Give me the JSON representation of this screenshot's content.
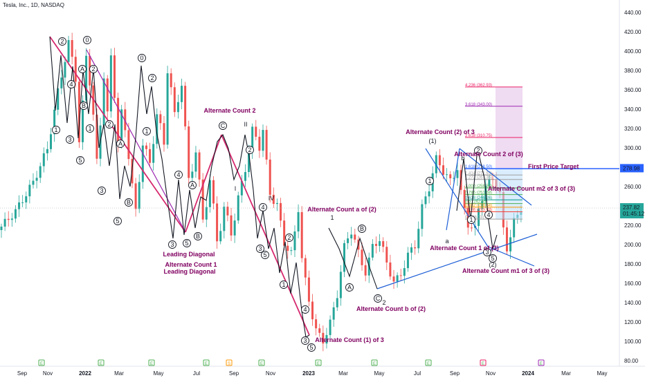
{
  "header": {
    "title": "Tesla, Inc., 1D, NASDAQ"
  },
  "chart_data": {
    "type": "candlestick",
    "symbol": "Tesla, Inc., 1D, NASDAQ",
    "ylim": [
      80,
      440
    ],
    "y_ticks": [
      80,
      100,
      120,
      140,
      160,
      180,
      200,
      220,
      240,
      260,
      280,
      300,
      320,
      340,
      360,
      380,
      400,
      420,
      440
    ],
    "x_ticks": [
      "Sep",
      "Nov",
      "2022",
      "Mar",
      "May",
      "Jul",
      "Sep",
      "Nov",
      "2023",
      "Mar",
      "May",
      "Jul",
      "Sep",
      "Nov",
      "2024",
      "Mar",
      "May"
    ],
    "last_price": {
      "value": "237.82",
      "countdown": "01:45:12"
    },
    "target_tag": "278.98",
    "price_path": [
      [
        0,
        215
      ],
      [
        5,
        235
      ],
      [
        10,
        265
      ],
      [
        14,
        300
      ],
      [
        17,
        360
      ],
      [
        20,
        410
      ],
      [
        22,
        370
      ],
      [
        23,
        300
      ],
      [
        25,
        400
      ],
      [
        27,
        330
      ],
      [
        28,
        280
      ],
      [
        30,
        380
      ],
      [
        31,
        330
      ],
      [
        32,
        400
      ],
      [
        34,
        300
      ],
      [
        35,
        340
      ],
      [
        37,
        290
      ],
      [
        39,
        230
      ],
      [
        41,
        310
      ],
      [
        43,
        280
      ],
      [
        45,
        340
      ],
      [
        47,
        300
      ],
      [
        48,
        390
      ],
      [
        50,
        330
      ],
      [
        52,
        370
      ],
      [
        54,
        260
      ],
      [
        56,
        300
      ],
      [
        58,
        220
      ],
      [
        60,
        270
      ],
      [
        62,
        200
      ],
      [
        64,
        240
      ],
      [
        66,
        210
      ],
      [
        68,
        250
      ],
      [
        70,
        280
      ],
      [
        72,
        320
      ],
      [
        74,
        300
      ],
      [
        75,
        320
      ],
      [
        76,
        280
      ],
      [
        77,
        250
      ],
      [
        79,
        240
      ],
      [
        81,
        200
      ],
      [
        83,
        190
      ],
      [
        85,
        240
      ],
      [
        86,
        180
      ],
      [
        88,
        140
      ],
      [
        90,
        110
      ],
      [
        92,
        100
      ],
      [
        94,
        120
      ],
      [
        96,
        150
      ],
      [
        98,
        200
      ],
      [
        100,
        215
      ],
      [
        102,
        190
      ],
      [
        104,
        170
      ],
      [
        106,
        200
      ],
      [
        108,
        205
      ],
      [
        110,
        180
      ],
      [
        112,
        160
      ],
      [
        114,
        170
      ],
      [
        116,
        190
      ],
      [
        118,
        200
      ],
      [
        120,
        240
      ],
      [
        122,
        260
      ],
      [
        124,
        290
      ],
      [
        126,
        275
      ],
      [
        128,
        265
      ],
      [
        130,
        280
      ],
      [
        131,
        250
      ],
      [
        133,
        220
      ],
      [
        135,
        215
      ],
      [
        136,
        240
      ],
      [
        138,
        260
      ],
      [
        140,
        270
      ],
      [
        141,
        260
      ],
      [
        142,
        250
      ],
      [
        143,
        212
      ],
      [
        144,
        195
      ],
      [
        145,
        210
      ],
      [
        146,
        225
      ],
      [
        148,
        238
      ]
    ],
    "fib_levels": [
      {
        "label": "4.236 (362.93)",
        "value": 362.93,
        "color": "#e91e63"
      },
      {
        "label": "3.618 (343.00)",
        "value": 343.0,
        "color": "#9c27b0"
      },
      {
        "label": "2.618 (310.75)",
        "value": 310.75,
        "color": "#e91e63"
      },
      {
        "label": "1.618 (278.50)",
        "value": 278.5,
        "color": "#2962ff"
      },
      {
        "label": "1.414 (271.93)",
        "value": 271.93,
        "color": "#9e9e9e"
      },
      {
        "label": "1.272 (267.35)",
        "value": 267.35,
        "color": "#9e9e9e"
      },
      {
        "label": "1.000 (258.58)",
        "value": 258.58,
        "color": "#4caf50"
      },
      {
        "label": "0.786 (251.68)",
        "value": 251.68,
        "color": "#4caf50"
      },
      {
        "label": "0.618 (246.26)",
        "value": 246.26,
        "color": "#009688"
      },
      {
        "label": "0.5 (242.45)",
        "value": 242.45,
        "color": "#4caf50"
      },
      {
        "label": "0.382 (238.64)",
        "value": 238.64,
        "color": "#ff9800"
      },
      {
        "label": "0.236 (233.93)",
        "value": 233.93,
        "color": "#f44336"
      },
      {
        "label": "0 (226.33)",
        "value": 226.33,
        "color": "#9e9e9e"
      }
    ],
    "annotations": [
      "Alternate Count 2",
      "Leading Diagonal",
      "Alternate Count 1",
      "Leading Diagonal",
      "Alternate Count a of (2)",
      "Alternate Count b of (2)",
      "Alternate Count (1) of 3",
      "Alternate Count (2) of 3",
      "Alternate Count 2 of (3)",
      "First Price Target",
      "Alternate Count m2 of 3 of (3)",
      "Alternate Count 1 of (3)",
      "Alternate Count m1 of 3 of (3)"
    ],
    "wave_labels": [
      "1",
      "2",
      "3",
      "4",
      "5",
      "A",
      "B",
      "C",
      "I",
      "II",
      "IV",
      "a",
      "b",
      "(1)",
      "(2)"
    ]
  }
}
